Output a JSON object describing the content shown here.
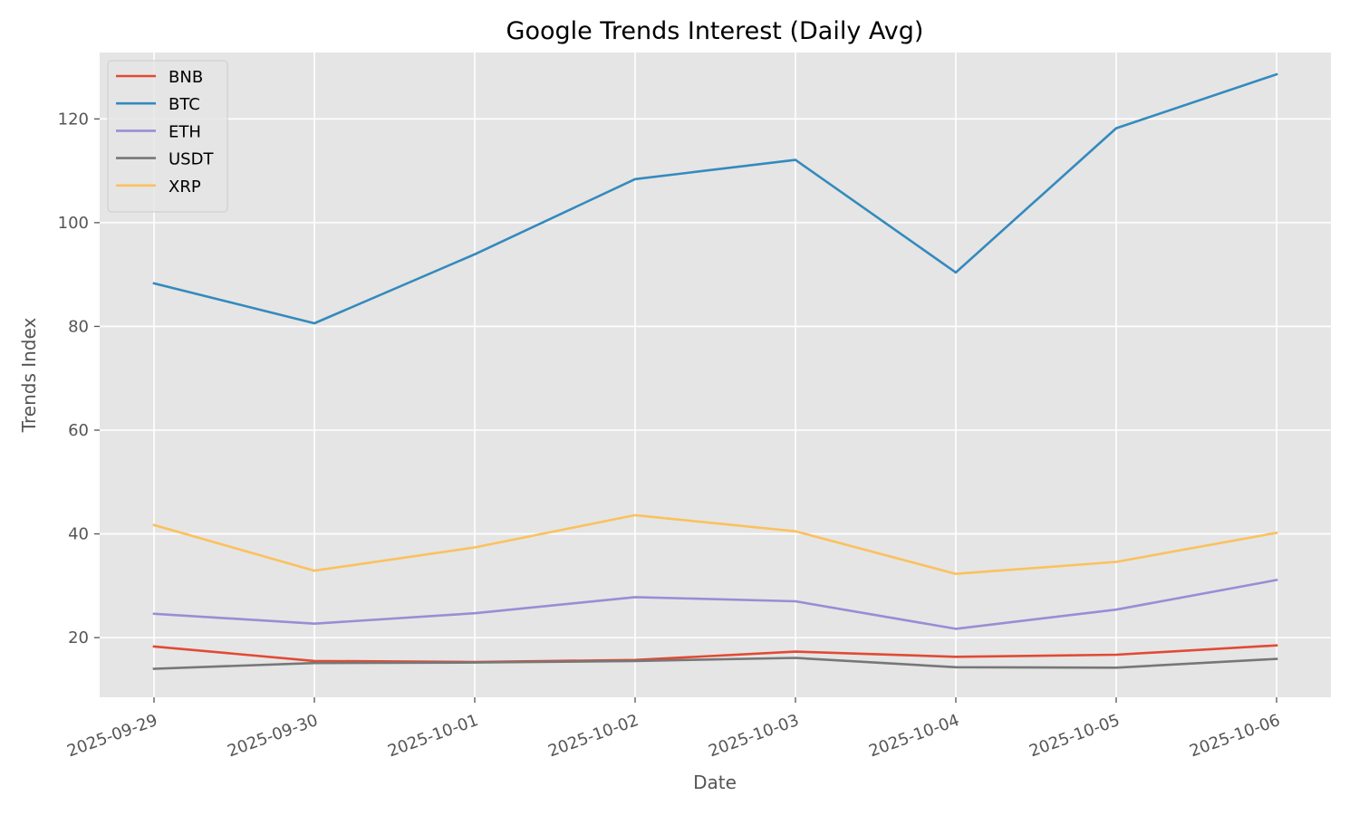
{
  "chart_data": {
    "type": "line",
    "title": "Google Trends Interest (Daily Avg)",
    "xlabel": "Date",
    "ylabel": "Trends Index",
    "x": [
      "2025-09-29",
      "2025-09-30",
      "2025-10-01",
      "2025-10-02",
      "2025-10-03",
      "2025-10-04",
      "2025-10-05",
      "2025-10-06"
    ],
    "ylim": [
      8.5,
      132.8
    ],
    "yticks": [
      20,
      40,
      60,
      80,
      100,
      120
    ],
    "grid": true,
    "legend_position": "top-left",
    "series": [
      {
        "name": "BNB",
        "color": "#E24A33",
        "values": [
          18.3,
          15.5,
          15.3,
          15.7,
          17.3,
          16.3,
          16.7,
          18.5
        ]
      },
      {
        "name": "BTC",
        "color": "#348ABD",
        "values": [
          88.3,
          80.6,
          93.9,
          108.4,
          112.1,
          90.4,
          118.2,
          128.6
        ]
      },
      {
        "name": "ETH",
        "color": "#988ED5",
        "values": [
          24.6,
          22.7,
          24.7,
          27.8,
          27.0,
          21.7,
          25.4,
          31.1
        ]
      },
      {
        "name": "USDT",
        "color": "#777777",
        "values": [
          14.0,
          15.1,
          15.2,
          15.5,
          16.1,
          14.3,
          14.2,
          15.9
        ]
      },
      {
        "name": "XRP",
        "color": "#FBC15E",
        "values": [
          41.7,
          32.9,
          37.4,
          43.6,
          40.5,
          32.3,
          34.6,
          40.2
        ]
      }
    ]
  }
}
